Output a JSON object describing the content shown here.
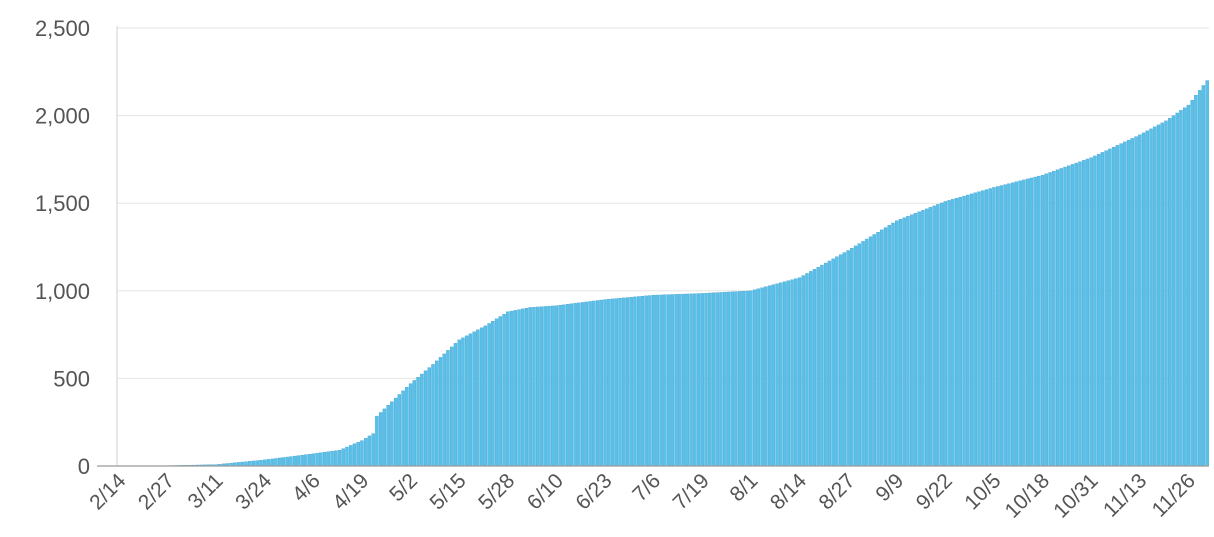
{
  "chart_data": {
    "type": "bar",
    "title": "",
    "xlabel": "",
    "ylabel": "",
    "ylim": [
      0,
      2500
    ],
    "yticks": [
      0,
      500,
      1000,
      1500,
      2000,
      2500
    ],
    "ytick_labels": [
      "0",
      "500",
      "1,000",
      "1,500",
      "2,000",
      "2,500"
    ],
    "xtick_labels": [
      "2/14",
      "2/27",
      "3/11",
      "3/24",
      "4/6",
      "4/19",
      "5/2",
      "5/15",
      "5/28",
      "6/10",
      "6/23",
      "7/6",
      "7/19",
      "8/1",
      "8/14",
      "8/27",
      "9/9",
      "9/22",
      "10/5",
      "10/18",
      "10/31",
      "11/13",
      "11/26"
    ],
    "grid": true,
    "bar_color": "#5bc0e8",
    "bar_edge_color": "#3a9fd0",
    "grid_color": "#e6e6e6",
    "axis_color": "#d0d0d0",
    "series": [
      {
        "x_start": "2/14",
        "x_end": "12/1",
        "x_step_days": 1,
        "control_points": [
          {
            "x": "2/14",
            "y": 0
          },
          {
            "x": "2/27",
            "y": 2
          },
          {
            "x": "3/11",
            "y": 8
          },
          {
            "x": "3/24",
            "y": 35
          },
          {
            "x": "4/6",
            "y": 70
          },
          {
            "x": "4/13",
            "y": 90
          },
          {
            "x": "4/19",
            "y": 145
          },
          {
            "x": "4/22",
            "y": 185
          },
          {
            "x": "4/23",
            "y": 285
          },
          {
            "x": "5/2",
            "y": 470
          },
          {
            "x": "5/8",
            "y": 580
          },
          {
            "x": "5/15",
            "y": 720
          },
          {
            "x": "5/22",
            "y": 800
          },
          {
            "x": "5/28",
            "y": 880
          },
          {
            "x": "6/3",
            "y": 905
          },
          {
            "x": "6/10",
            "y": 915
          },
          {
            "x": "6/23",
            "y": 950
          },
          {
            "x": "7/6",
            "y": 975
          },
          {
            "x": "7/19",
            "y": 985
          },
          {
            "x": "8/1",
            "y": 1000
          },
          {
            "x": "8/14",
            "y": 1075
          },
          {
            "x": "8/27",
            "y": 1230
          },
          {
            "x": "9/9",
            "y": 1400
          },
          {
            "x": "9/22",
            "y": 1510
          },
          {
            "x": "10/5",
            "y": 1590
          },
          {
            "x": "10/18",
            "y": 1660
          },
          {
            "x": "10/31",
            "y": 1760
          },
          {
            "x": "11/13",
            "y": 1890
          },
          {
            "x": "11/20",
            "y": 1970
          },
          {
            "x": "11/26",
            "y": 2060
          },
          {
            "x": "12/1",
            "y": 2200
          }
        ]
      }
    ]
  }
}
